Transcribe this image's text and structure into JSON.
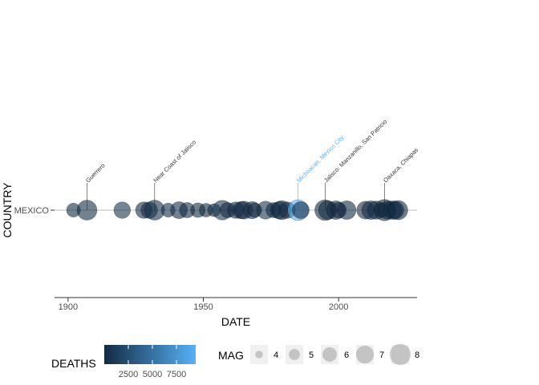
{
  "chart_data": {
    "type": "scatter",
    "title": "",
    "xlabel": "DATE",
    "ylabel": "COUNTRY",
    "xlim": [
      1895,
      2029
    ],
    "x_ticks": [
      1900,
      1950,
      2000
    ],
    "categories": [
      "MEXICO"
    ],
    "grid": false,
    "colors": {
      "low": "#132b43",
      "high": "#56b1f7",
      "axis_text": "#4d4d4d",
      "reference_line": "#bebebe"
    },
    "series": [
      {
        "category": "MEXICO",
        "points": [
          {
            "x": 1902,
            "mag": 6.0,
            "deaths": 0
          },
          {
            "x": 1907,
            "mag": 7.8,
            "deaths": 200
          },
          {
            "x": 1920,
            "mag": 6.8,
            "deaths": 600
          },
          {
            "x": 1928,
            "mag": 6.8,
            "deaths": 50
          },
          {
            "x": 1930,
            "mag": 6.8,
            "deaths": 100
          },
          {
            "x": 1932,
            "mag": 7.8,
            "deaths": 400
          },
          {
            "x": 1937,
            "mag": 6.0,
            "deaths": 200
          },
          {
            "x": 1941,
            "mag": 6.9,
            "deaths": 300
          },
          {
            "x": 1944,
            "mag": 6.4,
            "deaths": 100
          },
          {
            "x": 1948,
            "mag": 6.2,
            "deaths": 100
          },
          {
            "x": 1951,
            "mag": 5.9,
            "deaths": 50
          },
          {
            "x": 1954,
            "mag": 5.7,
            "deaths": 50
          },
          {
            "x": 1957,
            "mag": 7.7,
            "deaths": 700
          },
          {
            "x": 1959,
            "mag": 6.4,
            "deaths": 100
          },
          {
            "x": 1962,
            "mag": 6.8,
            "deaths": 200
          },
          {
            "x": 1964,
            "mag": 7.0,
            "deaths": 150
          },
          {
            "x": 1965,
            "mag": 7.2,
            "deaths": 100
          },
          {
            "x": 1968,
            "mag": 7.0,
            "deaths": 300
          },
          {
            "x": 1969,
            "mag": 6.1,
            "deaths": 100
          },
          {
            "x": 1973,
            "mag": 7.2,
            "deaths": 600
          },
          {
            "x": 1976,
            "mag": 6.4,
            "deaths": 50
          },
          {
            "x": 1978,
            "mag": 7.0,
            "deaths": 50
          },
          {
            "x": 1979,
            "mag": 7.5,
            "deaths": 50
          },
          {
            "x": 1981,
            "mag": 6.8,
            "deaths": 100
          },
          {
            "x": 1985,
            "mag": 8.0,
            "deaths": 9500
          },
          {
            "x": 1986,
            "mag": 6.9,
            "deaths": 50
          },
          {
            "x": 1995,
            "mag": 8.0,
            "deaths": 50
          },
          {
            "x": 1996,
            "mag": 7.4,
            "deaths": 50
          },
          {
            "x": 1999,
            "mag": 7.4,
            "deaths": 100
          },
          {
            "x": 2000,
            "mag": 6.5,
            "deaths": 50
          },
          {
            "x": 2003,
            "mag": 7.4,
            "deaths": 50
          },
          {
            "x": 2010,
            "mag": 7.2,
            "deaths": 100
          },
          {
            "x": 2012,
            "mag": 7.4,
            "deaths": 50
          },
          {
            "x": 2014,
            "mag": 7.3,
            "deaths": 50
          },
          {
            "x": 2016,
            "mag": 6.2,
            "deaths": 50
          },
          {
            "x": 2017,
            "mag": 8.2,
            "deaths": 100
          },
          {
            "x": 2018,
            "mag": 7.2,
            "deaths": 50
          },
          {
            "x": 2020,
            "mag": 7.4,
            "deaths": 50
          },
          {
            "x": 2021,
            "mag": 7.0,
            "deaths": 50
          },
          {
            "x": 2022,
            "mag": 7.6,
            "deaths": 50
          }
        ]
      }
    ],
    "annotations": [
      {
        "x": 1907,
        "text": "Guerrero",
        "highlight": false
      },
      {
        "x": 1932,
        "text": "Near Coast of Jalisco",
        "highlight": false
      },
      {
        "x": 1985,
        "text": "Michoacan, Mexico City",
        "highlight": true
      },
      {
        "x": 1995,
        "text": "Jalisco: Manzanillo, San Patricio",
        "highlight": false
      },
      {
        "x": 2017,
        "text": "Oaxaca, Chiapas",
        "highlight": false
      }
    ],
    "legend_deaths": {
      "title": "DEATHS",
      "labels": [
        "2500",
        "5000",
        "7500"
      ],
      "ticks": [
        2500,
        5000,
        7500
      ],
      "range": [
        0,
        9500
      ],
      "placement": "bottom"
    },
    "legend_mag": {
      "title": "MAG",
      "labels": [
        "4",
        "5",
        "6",
        "7",
        "8"
      ],
      "values": [
        4,
        5,
        6,
        7,
        8
      ],
      "placement": "bottom"
    }
  }
}
